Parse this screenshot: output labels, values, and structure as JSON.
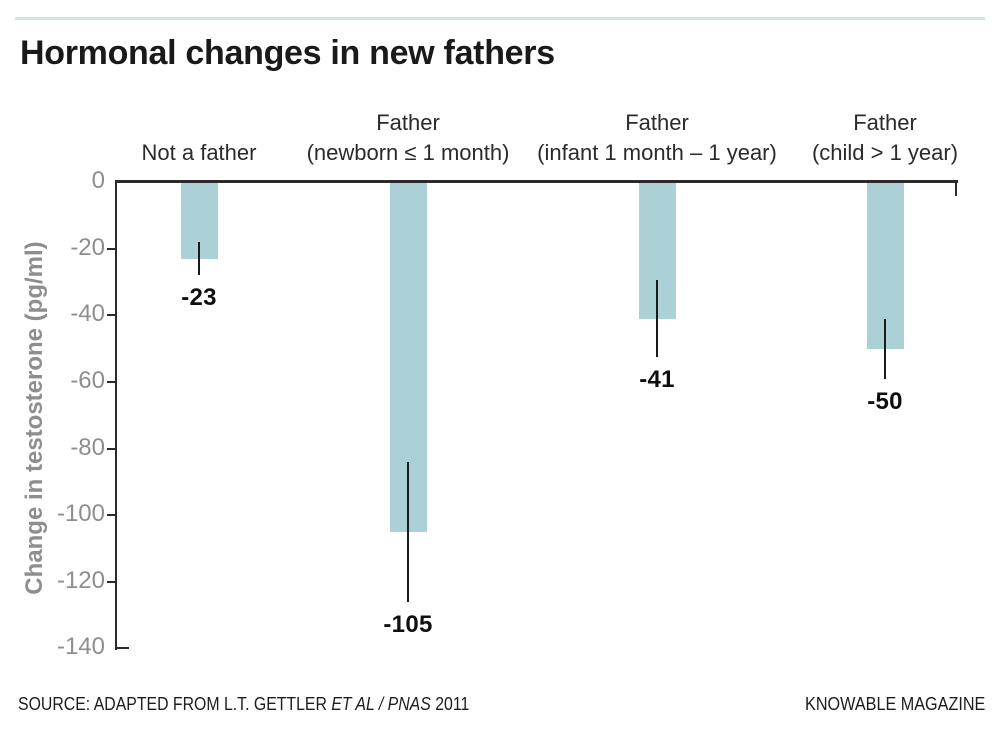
{
  "header": {
    "title": "Hormonal changes in new fathers"
  },
  "footer": {
    "source_prefix": "SOURCE: ADAPTED FROM L.T. GETTLER ",
    "source_italic": "ET AL / PNAS",
    "source_suffix": " 2011",
    "credit": "KNOWABLE MAGAZINE"
  },
  "chart_data": {
    "type": "bar",
    "title": "Hormonal changes in new fathers",
    "xlabel": "",
    "ylabel": "Change in testosterone (pg/ml)",
    "categories": [
      [
        "Not a father"
      ],
      [
        "Father",
        "(newborn ≤ 1 month)"
      ],
      [
        "Father",
        "(infant 1 month – 1 year)"
      ],
      [
        "Father",
        "(child > 1 year)"
      ]
    ],
    "values": [
      -23,
      -105,
      -41,
      -50
    ],
    "value_labels": [
      "-23",
      "-105",
      "-41",
      "-50"
    ],
    "error_bars_est": [
      5,
      21,
      11.5,
      9
    ],
    "yticks": [
      0,
      -20,
      -40,
      -60,
      -80,
      -100,
      -120,
      -140
    ],
    "ytick_labels": [
      "0",
      "-20",
      "-40",
      "-60",
      "-80",
      "-100",
      "-120",
      "-140"
    ],
    "ylim": [
      0,
      -140
    ],
    "bar_color": "#abd1d6",
    "grid": false,
    "legend": false,
    "orientation": "vertical-negative"
  },
  "colors": {
    "accent_rule": "#d2e4e6",
    "bar": "#abd1d6",
    "axis": "#2b2b2b",
    "tick_label": "#8e8e8e",
    "value_label": "#0f0f0f",
    "title": "#1a1a1a"
  }
}
